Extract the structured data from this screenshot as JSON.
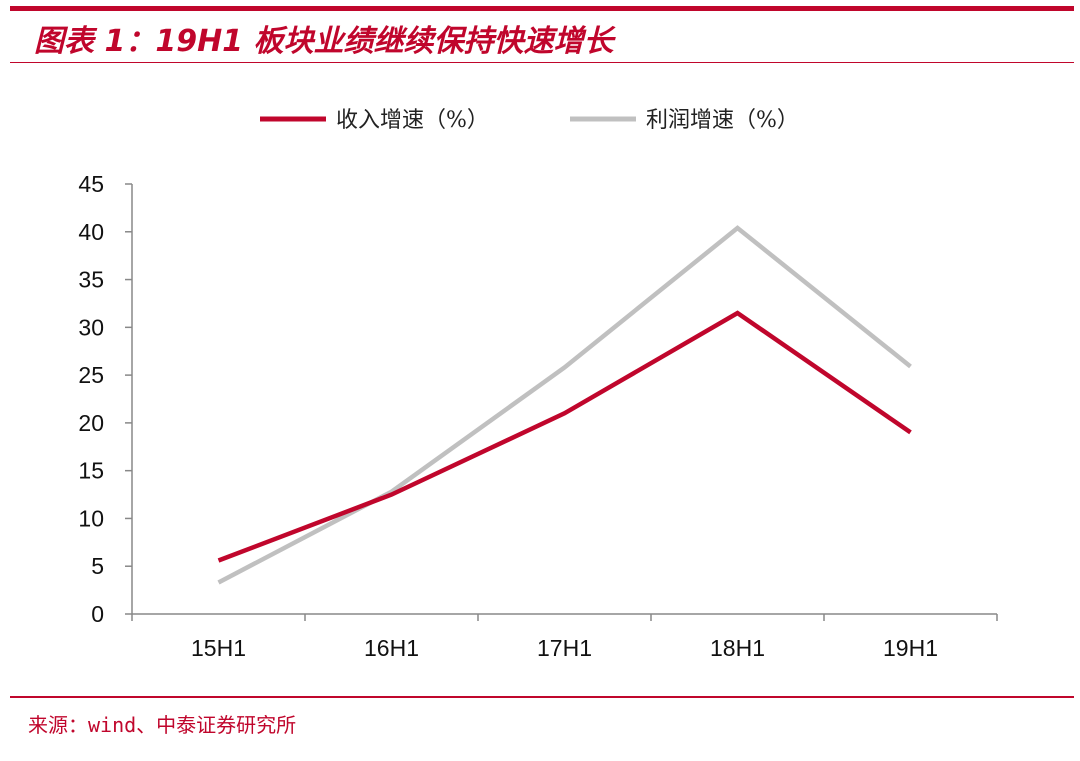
{
  "header": {
    "title": "图表 1：19H1 板块业绩继续保持快速增长"
  },
  "footer": {
    "source": "来源：wind、中泰证券研究所"
  },
  "chart_data": {
    "type": "line",
    "categories": [
      "15H1",
      "16H1",
      "17H1",
      "18H1",
      "19H1"
    ],
    "series": [
      {
        "name": "收入增速（%）",
        "color": "#c0062c",
        "values": [
          5.6,
          12.5,
          21.0,
          31.5,
          19.0
        ]
      },
      {
        "name": "利润增速（%）",
        "color": "#c0c0c0",
        "values": [
          3.3,
          12.8,
          25.8,
          40.4,
          25.9
        ]
      }
    ],
    "ylim": [
      0,
      45
    ],
    "yticks": [
      0,
      5,
      10,
      15,
      20,
      25,
      30,
      35,
      40,
      45
    ],
    "xlabel": "",
    "ylabel": "",
    "grid": false,
    "legend_position": "top-center"
  }
}
